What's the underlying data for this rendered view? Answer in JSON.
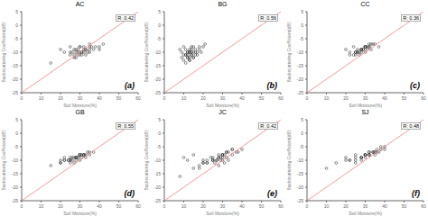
{
  "chart_data": [
    {
      "type": "scatter",
      "title": "AC",
      "xlabel": "Soil Moisture(%)",
      "ylabel": "Backscattering Coefficient(dB)",
      "xlim": [
        0,
        60
      ],
      "ylim": [
        -25,
        5
      ],
      "xticks": [
        0,
        10,
        20,
        30,
        40,
        50,
        60
      ],
      "yticks": [
        -25,
        -20,
        -15,
        -10,
        -5,
        0,
        5
      ],
      "annotations": [
        "R: 0.42",
        "(a)"
      ],
      "series": [
        {
          "type": "scatter",
          "marker": "o",
          "color": "#222222",
          "x": [
            20,
            22,
            25,
            25,
            26,
            27,
            27,
            28,
            28,
            29,
            29,
            30,
            30,
            30,
            31,
            31,
            32,
            32,
            33,
            33,
            34,
            35,
            35,
            36,
            37,
            38,
            40,
            40,
            42,
            15,
            25,
            28,
            30,
            32,
            35,
            27,
            29,
            31,
            33,
            35
          ],
          "values": [
            -9,
            -10,
            -8,
            -11,
            -10,
            -9,
            -11,
            -10,
            -12,
            -9,
            -10,
            -8,
            -10,
            -11,
            -10,
            -11,
            -9,
            -10,
            -9,
            -11,
            -10,
            -9,
            -10,
            -8,
            -9,
            -8,
            -8,
            -9,
            -7,
            -14,
            -10,
            -9,
            -8,
            -8,
            -7,
            -12,
            -11,
            -10,
            -9,
            -8
          ]
        },
        {
          "type": "line",
          "color": "#f08080",
          "x": [
            0,
            60
          ],
          "values": [
            -25,
            5
          ]
        }
      ]
    },
    {
      "type": "scatter",
      "title": "BG",
      "xlabel": "Soil Moisture(%)",
      "ylabel": "Backscattering Coefficient(dB)",
      "xlim": [
        0,
        60
      ],
      "ylim": [
        -25,
        5
      ],
      "xticks": [
        0,
        10,
        20,
        30,
        40,
        50,
        60
      ],
      "yticks": [
        -25,
        -20,
        -15,
        -10,
        -5,
        0,
        5
      ],
      "annotations": [
        "R: 0.56",
        "(b)"
      ],
      "series": [
        {
          "type": "scatter",
          "marker": "o",
          "color": "#222222",
          "x": [
            8,
            9,
            10,
            10,
            11,
            12,
            12,
            13,
            13,
            14,
            14,
            15,
            15,
            16,
            16,
            17,
            18,
            18,
            19,
            20,
            21,
            9,
            11,
            13,
            15,
            17,
            10,
            12,
            14,
            16,
            11,
            13,
            12,
            14,
            13,
            15,
            11,
            12,
            13,
            14
          ],
          "values": [
            -9,
            -10,
            -8,
            -11,
            -9,
            -10,
            -11,
            -10,
            -12,
            -9,
            -10,
            -8,
            -10,
            -11,
            -9,
            -10,
            -8,
            -9,
            -10,
            -8,
            -7,
            -12,
            -11,
            -10,
            -12,
            -11,
            -13,
            -12,
            -11,
            -10,
            -14,
            -13,
            -12,
            -11,
            -13,
            -12,
            -11,
            -10,
            -9,
            -8
          ]
        },
        {
          "type": "line",
          "color": "#f08080",
          "x": [
            0,
            60
          ],
          "values": [
            -25,
            5
          ]
        }
      ]
    },
    {
      "type": "scatter",
      "title": "CC",
      "xlabel": "Soil Moisture(%)",
      "ylabel": "Backscattering Coefficient(dB)",
      "xlim": [
        0,
        60
      ],
      "ylim": [
        -25,
        5
      ],
      "xticks": [
        0,
        10,
        20,
        30,
        40,
        50,
        60
      ],
      "yticks": [
        -25,
        -20,
        -15,
        -10,
        -5,
        0,
        5
      ],
      "annotations": [
        "R: 0.36",
        "(c)"
      ],
      "series": [
        {
          "type": "scatter",
          "marker": "o",
          "color": "#222222",
          "x": [
            20,
            22,
            24,
            25,
            25,
            26,
            27,
            28,
            29,
            30,
            30,
            31,
            32,
            33,
            35,
            37,
            22,
            25,
            28,
            30,
            32,
            26,
            28,
            30,
            24,
            26,
            28,
            30,
            32,
            34,
            27,
            29,
            31,
            33
          ],
          "values": [
            -9,
            -10,
            -8,
            -11,
            -10,
            -9,
            -11,
            -10,
            -9,
            -8,
            -10,
            -9,
            -8,
            -9,
            -7,
            -8,
            -11,
            -10,
            -9,
            -8,
            -8,
            -10,
            -9,
            -8,
            -11,
            -10,
            -9,
            -8,
            -7,
            -7,
            -10,
            -9,
            -8,
            -7
          ]
        },
        {
          "type": "line",
          "color": "#f08080",
          "x": [
            0,
            60
          ],
          "values": [
            -25,
            5
          ]
        }
      ]
    },
    {
      "type": "scatter",
      "title": "GB",
      "xlabel": "Soil Moisture(%)",
      "ylabel": "Backscattering Coefficient(dB)",
      "xlim": [
        0,
        60
      ],
      "ylim": [
        -25,
        5
      ],
      "xticks": [
        0,
        10,
        20,
        30,
        40,
        50,
        60
      ],
      "yticks": [
        -25,
        -20,
        -15,
        -10,
        -5,
        0,
        5
      ],
      "annotations": [
        "R: 0.55",
        "(d)"
      ],
      "series": [
        {
          "type": "scatter",
          "marker": "o",
          "color": "#222222",
          "x": [
            20,
            22,
            24,
            25,
            26,
            27,
            28,
            29,
            30,
            30,
            31,
            32,
            33,
            35,
            37,
            15,
            20,
            25,
            28,
            30,
            32,
            35,
            22,
            25,
            28,
            30,
            32,
            34,
            20,
            22,
            24,
            26,
            28,
            30,
            25,
            27,
            29,
            31,
            33
          ],
          "values": [
            -10,
            -9,
            -10,
            -11,
            -10,
            -11,
            -10,
            -9,
            -8,
            -10,
            -9,
            -8,
            -9,
            -8,
            -7,
            -12,
            -11,
            -10,
            -9,
            -8,
            -8,
            -7,
            -10,
            -9,
            -9,
            -8,
            -8,
            -7,
            -11,
            -10,
            -10,
            -9,
            -9,
            -8,
            -10,
            -9,
            -9,
            -8,
            -8
          ]
        },
        {
          "type": "line",
          "color": "#f08080",
          "x": [
            0,
            60
          ],
          "values": [
            -25,
            5
          ]
        }
      ]
    },
    {
      "type": "scatter",
      "title": "JC",
      "xlabel": "Soil Moisture(%)",
      "ylabel": "Backscattering Coefficient(dB)",
      "xlim": [
        0,
        60
      ],
      "ylim": [
        -25,
        5
      ],
      "xticks": [
        0,
        10,
        20,
        30,
        40,
        50,
        60
      ],
      "yticks": [
        -25,
        -20,
        -15,
        -10,
        -5,
        0,
        5
      ],
      "annotations": [
        "R: 0.42",
        "(e)"
      ],
      "series": [
        {
          "type": "scatter",
          "marker": "o",
          "color": "#222222",
          "x": [
            10,
            12,
            15,
            18,
            20,
            22,
            24,
            25,
            26,
            27,
            28,
            28,
            29,
            30,
            30,
            31,
            32,
            33,
            35,
            37,
            38,
            40,
            20,
            22,
            25,
            28,
            30,
            32,
            35,
            18,
            22,
            25,
            28,
            30,
            32,
            35,
            8,
            15,
            20,
            25,
            30,
            27,
            29,
            31,
            33
          ],
          "values": [
            -9,
            -10,
            -8,
            -12,
            -10,
            -11,
            -9,
            -10,
            -11,
            -10,
            -12,
            -9,
            -10,
            -8,
            -10,
            -11,
            -9,
            -10,
            -8,
            -7,
            -7,
            -6,
            -11,
            -10,
            -9,
            -8,
            -8,
            -7,
            -6,
            -13,
            -11,
            -10,
            -9,
            -8,
            -7,
            -6,
            -16,
            -13,
            -11,
            -10,
            -9,
            -10,
            -9,
            -8,
            -7
          ]
        },
        {
          "type": "line",
          "color": "#f08080",
          "x": [
            0,
            60
          ],
          "values": [
            -25,
            5
          ]
        }
      ]
    },
    {
      "type": "scatter",
      "title": "SJ",
      "xlabel": "Soil Moisture(%)",
      "ylabel": "Backscattering Coefficient(dB)",
      "xlim": [
        0,
        60
      ],
      "ylim": [
        -25,
        5
      ],
      "xticks": [
        0,
        10,
        20,
        30,
        40,
        50,
        60
      ],
      "yticks": [
        -25,
        -20,
        -15,
        -10,
        -5,
        0,
        5
      ],
      "annotations": [
        "R: 0.48",
        "(f)"
      ],
      "series": [
        {
          "type": "scatter",
          "marker": "o",
          "color": "#222222",
          "x": [
            20,
            22,
            25,
            28,
            30,
            32,
            35,
            37,
            40,
            25,
            28,
            30,
            32,
            35,
            22,
            25,
            28,
            30,
            32,
            34,
            36,
            38,
            40,
            25,
            28,
            30,
            32,
            35,
            10,
            15,
            20,
            30,
            32,
            34,
            36,
            38
          ],
          "values": [
            -9,
            -10,
            -8,
            -9,
            -8,
            -7,
            -8,
            -7,
            -6,
            -10,
            -9,
            -8,
            -8,
            -7,
            -10,
            -9,
            -9,
            -8,
            -8,
            -7,
            -7,
            -6,
            -5,
            -11,
            -10,
            -9,
            -8,
            -7,
            -13,
            -11,
            -10,
            -8,
            -7,
            -7,
            -6,
            -5
          ]
        },
        {
          "type": "line",
          "color": "#f08080",
          "x": [
            0,
            60
          ],
          "values": [
            -25,
            5
          ]
        }
      ]
    }
  ]
}
